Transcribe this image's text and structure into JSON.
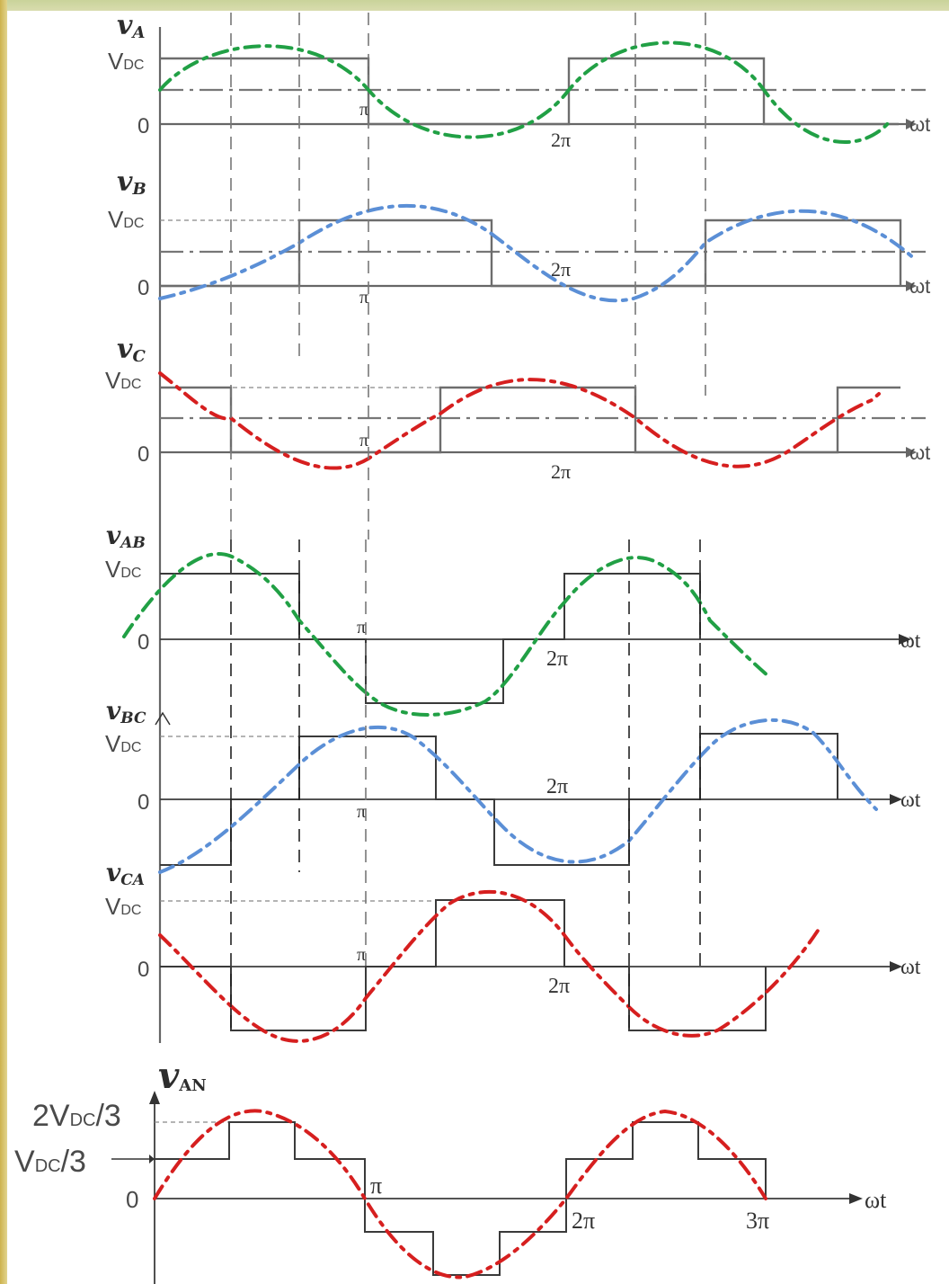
{
  "colors": {
    "phase_a": "#21a045",
    "phase_b": "#5b8fd6",
    "phase_c": "#d61f1f",
    "frame": "#d6d391"
  },
  "waveforms": [
    {
      "id": "vA",
      "symbol": "v",
      "subscript": "A",
      "level_label": "V",
      "level_sub": "DC",
      "zero_label": "0",
      "axis_label": "ωt",
      "ticks": [
        "π",
        "2π"
      ],
      "sine_color": "phase_a"
    },
    {
      "id": "vB",
      "symbol": "v",
      "subscript": "B",
      "level_label": "V",
      "level_sub": "DC",
      "zero_label": "0",
      "axis_label": "ωt",
      "ticks": [
        "π",
        "2π"
      ],
      "sine_color": "phase_b"
    },
    {
      "id": "vC",
      "symbol": "v",
      "subscript": "C",
      "level_label": "V",
      "level_sub": "DC",
      "zero_label": "0",
      "axis_label": "ωt",
      "ticks": [
        "π",
        "2π"
      ],
      "sine_color": "phase_c"
    },
    {
      "id": "vAB",
      "symbol": "v",
      "subscript": "AB",
      "level_label": "V",
      "level_sub": "DC",
      "zero_label": "0",
      "axis_label": "ωt",
      "ticks": [
        "π",
        "2π"
      ],
      "sine_color": "phase_a"
    },
    {
      "id": "vBC",
      "symbol": "v",
      "subscript": "BC",
      "level_label": "V",
      "level_sub": "DC",
      "zero_label": "0",
      "axis_label": "ωt",
      "ticks": [
        "π",
        "2π"
      ],
      "sine_color": "phase_b"
    },
    {
      "id": "vCA",
      "symbol": "v",
      "subscript": "CA",
      "level_label": "V",
      "level_sub": "DC",
      "zero_label": "0",
      "axis_label": "ωt",
      "ticks": [
        "π",
        "2π"
      ],
      "sine_color": "phase_c"
    }
  ],
  "van": {
    "symbol": "v",
    "subscript": "AN",
    "level_high": "2V",
    "level_high_sub": "DC",
    "level_high_suffix": "/3",
    "level_low": "V",
    "level_low_sub": "DC",
    "level_low_suffix": "/3",
    "zero_label": "0",
    "axis_label": "ωt",
    "ticks": [
      "π",
      "2π",
      "3π"
    ],
    "sine_color": "phase_c"
  }
}
